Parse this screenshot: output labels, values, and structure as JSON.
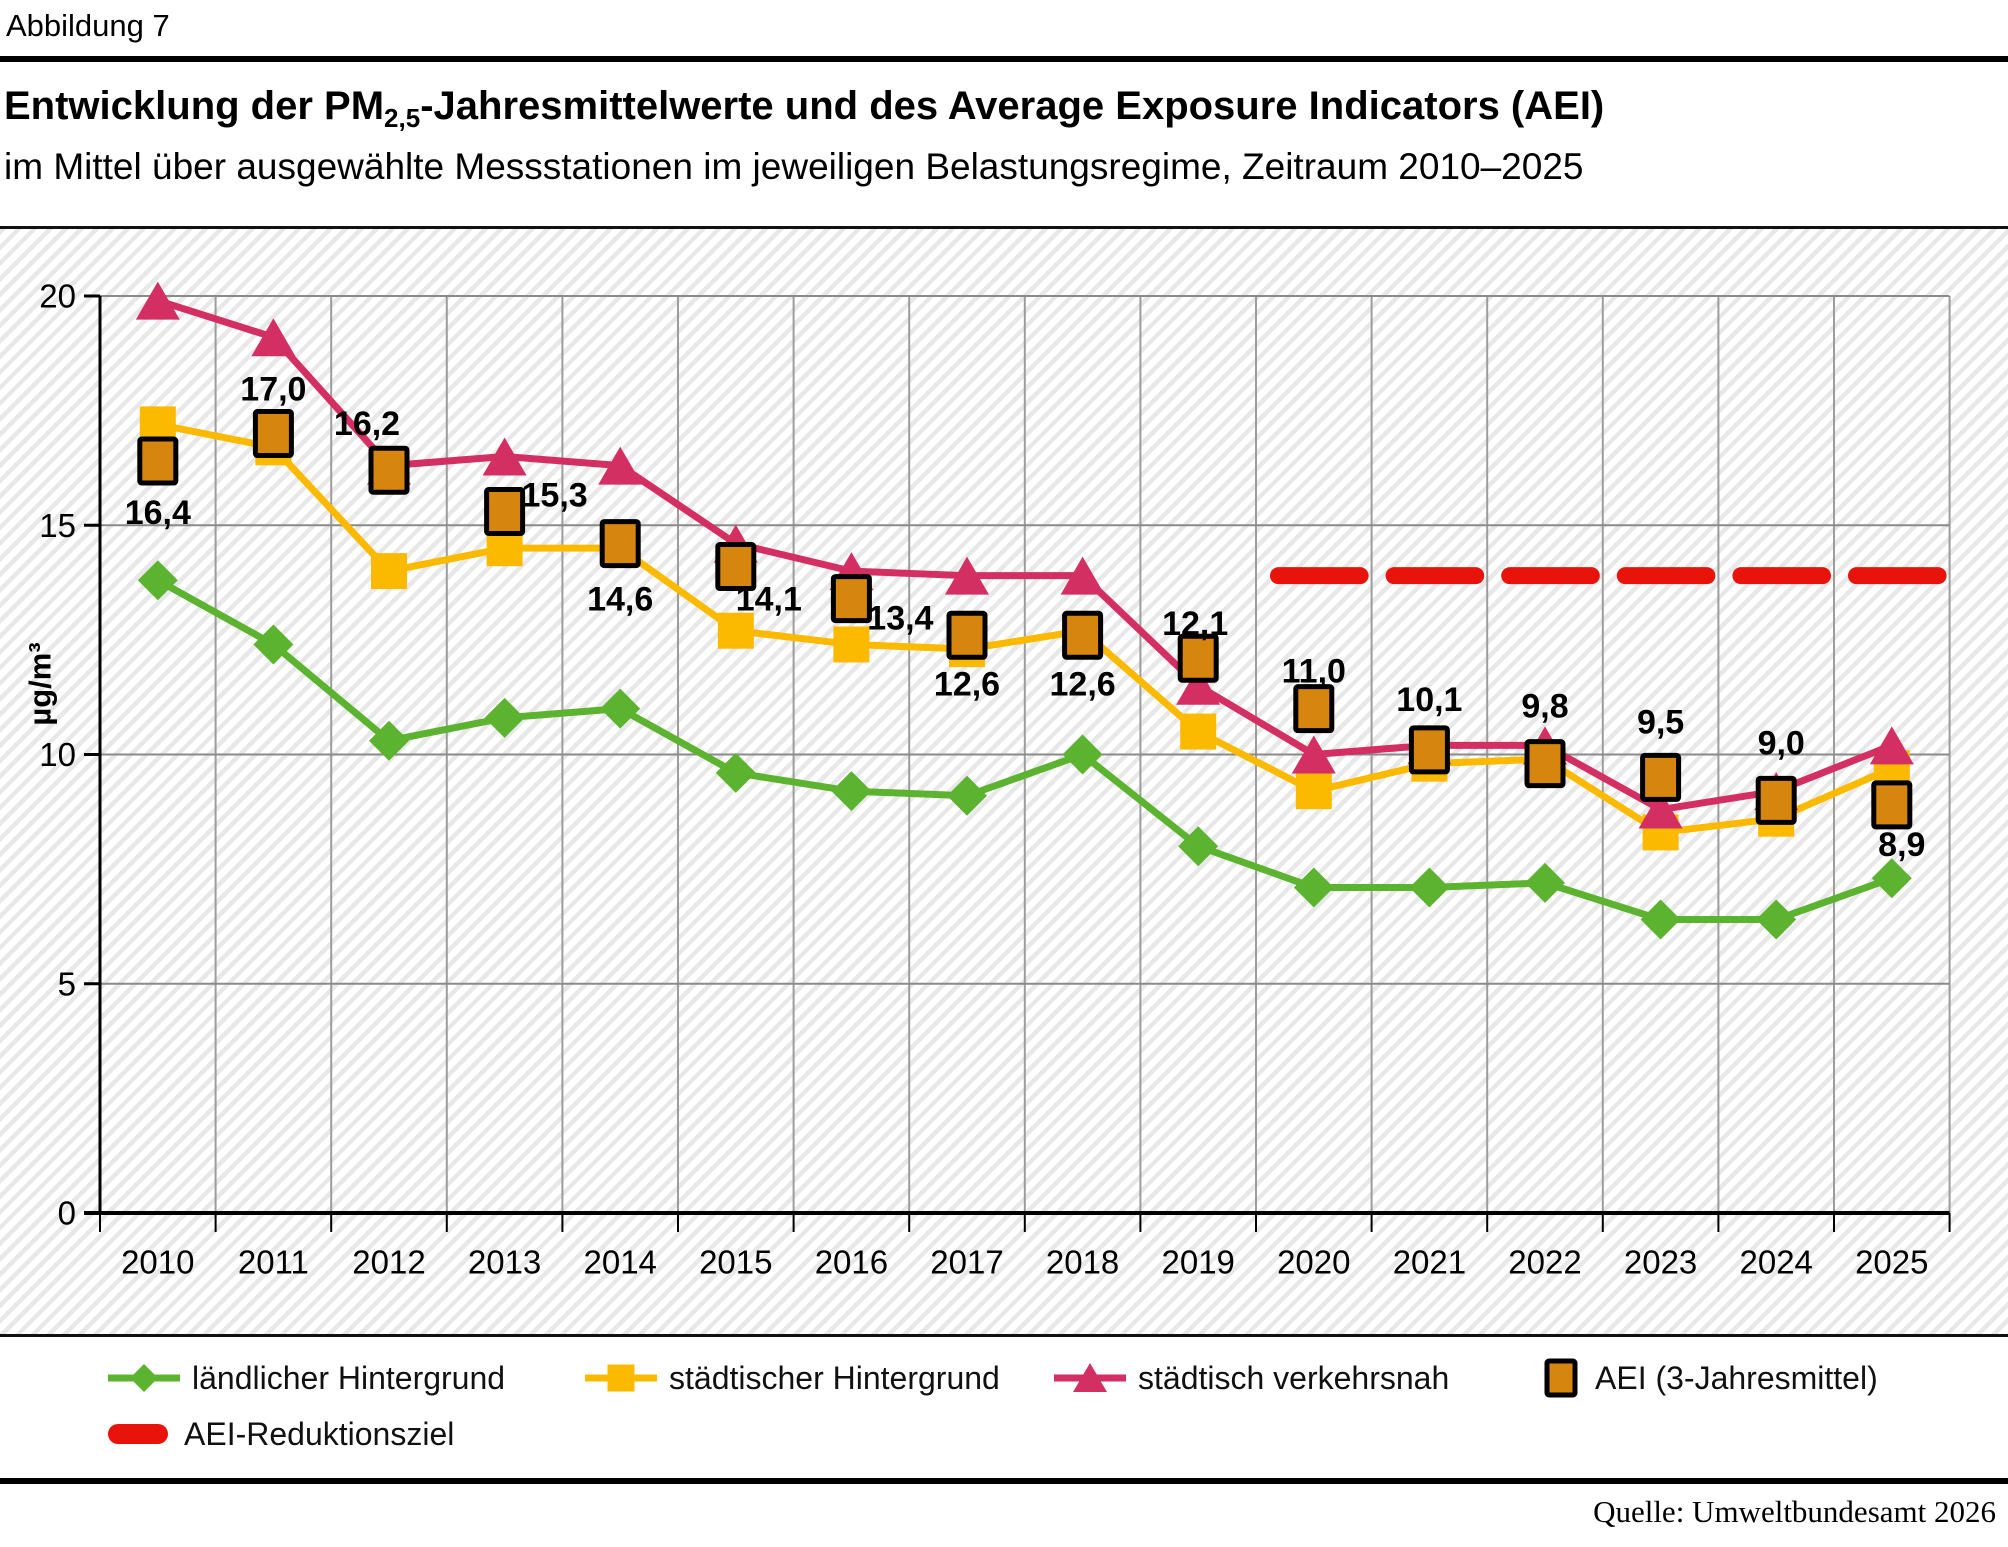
{
  "figure": {
    "kicker": "Abbildung 7",
    "title": {
      "prefix": "Entwicklung der PM",
      "subscript": "2,5",
      "suffix": "-Jahresmittelwerte und des Average Exposure Indicators (AEI)"
    },
    "subtitle": "im Mittel über ausgewählte Messstationen im jeweiligen Belastungsregime, Zeitraum 2010–2025",
    "source": "Quelle: Umweltbundesamt 2026"
  },
  "legend": {
    "items": [
      {
        "label": "ländlicher Hintergrund",
        "marker": "line-diamond",
        "color": "#5cb32f"
      },
      {
        "label": "städtischer Hintergrund",
        "marker": "line-square",
        "color": "#fbba00"
      },
      {
        "label": "städtisch verkehrsnah",
        "marker": "line-triangle",
        "color": "#d42f63"
      },
      {
        "label": "AEI (3-Jahresmittel)",
        "marker": "outlined-square",
        "color": "#d6860e"
      },
      {
        "label": "AEI-Reduktionsziel",
        "marker": "dash",
        "color": "#e8140c"
      }
    ]
  },
  "chart_data": {
    "type": "line",
    "title": "Entwicklung der PM2,5-Jahresmittelwerte und des Average Exposure Indicators (AEI)",
    "xlabel": "",
    "ylabel": "µg/m³",
    "ylim": [
      0,
      20
    ],
    "y_ticks": [
      0,
      5,
      10,
      15,
      20
    ],
    "grid": true,
    "legend_position": "bottom",
    "categories": [
      "2010",
      "2011",
      "2012",
      "2013",
      "2014",
      "2015",
      "2016",
      "2017",
      "2018",
      "2019",
      "2020",
      "2021",
      "2022",
      "2023",
      "2024",
      "2025"
    ],
    "series": [
      {
        "name": "ländlicher Hintergrund",
        "marker": "diamond",
        "color": "#5cb32f",
        "values": [
          13.8,
          12.4,
          10.3,
          10.8,
          11.0,
          9.6,
          9.2,
          9.1,
          10.0,
          8.0,
          7.1,
          7.1,
          7.2,
          6.4,
          6.4,
          7.3
        ]
      },
      {
        "name": "städtischer Hintergrund",
        "marker": "square",
        "color": "#fbba00",
        "values": [
          17.2,
          16.7,
          14.0,
          14.5,
          14.5,
          12.7,
          12.4,
          12.3,
          12.7,
          10.5,
          9.2,
          9.8,
          9.9,
          8.3,
          8.6,
          9.7
        ]
      },
      {
        "name": "städtisch verkehrsnah",
        "marker": "triangle",
        "color": "#d42f63",
        "values": [
          19.9,
          19.1,
          16.3,
          16.5,
          16.3,
          14.6,
          14.0,
          13.9,
          13.9,
          11.5,
          10.0,
          10.2,
          10.2,
          8.8,
          9.2,
          10.2
        ]
      },
      {
        "name": "AEI (3-Jahresmittel)",
        "marker": "outlined-square",
        "color": "#d6860e",
        "values": [
          16.4,
          17.0,
          16.2,
          15.3,
          14.6,
          14.1,
          13.4,
          12.6,
          12.6,
          12.1,
          11.0,
          10.1,
          9.8,
          9.5,
          9.0,
          8.9
        ],
        "labels": [
          "16,4",
          "17,0",
          "16,2",
          "15,3",
          "14,6",
          "14,1",
          "13,4",
          "12,6",
          "12,6",
          "12,1",
          "11,0",
          "10,1",
          "9,8",
          "9,5",
          "9,0",
          "8,9"
        ]
      }
    ],
    "target_line": {
      "name": "AEI-Reduktionsziel",
      "value": 13.9,
      "color": "#e8140c",
      "from_category": "2020",
      "to_category": "2025"
    }
  }
}
